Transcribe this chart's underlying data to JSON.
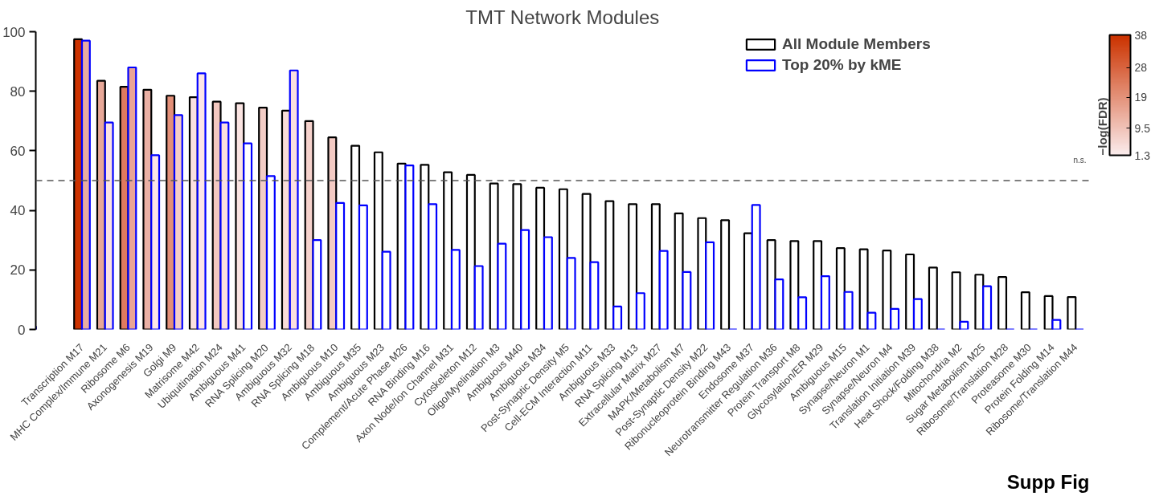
{
  "chart_data": {
    "type": "bar",
    "title": "TMT Network Modules",
    "clabel": "−log(FDR)",
    "categories": [
      "Transcription M17",
      "MHC Complex/Immune M21",
      "Ribosome M6",
      "Axonogenesis M19",
      "Golgi M9",
      "Matrisome M42",
      "Ubiquitination M24",
      "Ambiguous M41",
      "RNA Splicing M20",
      "Ambiguous M32",
      "RNA Splicing M18",
      "Ambiguous M10",
      "Ambiguous M35",
      "Ambiguous M23",
      "Complement/Acute Phase M26",
      "RNA Binding M16",
      "Axon Node/Ion Channel M31",
      "Cytoskeleton M12",
      "Oligo/Myelination M3",
      "Ambiguous M40",
      "Ambiguous M34",
      "Post-Synaptic Density M5",
      "Cell-ECM Interaction M11",
      "Ambiguous M33",
      "RNA Splicing M13",
      "Extracellular Matrix M27",
      "MAPK/Metabolism M7",
      "Post-Synaptic Density M22",
      "Ribonucleoprotein Binding M43",
      "Endosome M37",
      "Neurotransmitter Regulation M36",
      "Protein Transport M8",
      "Glycosylation/ER M29",
      "Ambiguous M15",
      "Synapse/Neuron M1",
      "Synapse/Neuron M4",
      "Translation Initiation M39",
      "Heat Shock/Folding M38",
      "Mitochondria M2",
      "Sugar Metabolism M25",
      "Ribosome/Translation M28",
      "Proteasome M30",
      "Protein Folding M14",
      "Ribosome/Translation M44"
    ],
    "series": [
      {
        "name": "All Module Members",
        "color": "#000000",
        "values": [
          97.5,
          83.5,
          81.5,
          80.5,
          78.5,
          78,
          76.5,
          76,
          74.5,
          73.5,
          70,
          64.5,
          61.7,
          59.5,
          55.7,
          55.3,
          52.8,
          51.9,
          49,
          48.8,
          47.6,
          47.1,
          45.5,
          43.1,
          42.1,
          42.1,
          39,
          37.4,
          36.7,
          32.3,
          30,
          29.7,
          29.7,
          27.3,
          26.9,
          26.5,
          25.2,
          20.8,
          19.2,
          18.4,
          17.6,
          12.5,
          11.2,
          10.9
        ],
        "colors": [
          "#cc3300",
          "#e8a898",
          "#e07a5f",
          "#eab0a4",
          "#e38f78",
          "#fbe0e0",
          "#f3c8c0",
          "#fbe4e2",
          "#f3cdc6",
          "#f8dcd8",
          "#f6d2cc",
          "#f4cbc4",
          "#ffffff",
          "#ffffff",
          "#ffffff",
          "#ffffff",
          "#ffffff",
          "#ffffff",
          "#ffffff",
          "#ffffff",
          "#ffffff",
          "#ffffff",
          "#ffffff",
          "#ffffff",
          "#ffffff",
          "#ffffff",
          "#ffffff",
          "#ffffff",
          "#ffffff",
          "#ffffff",
          "#ffffff",
          "#ffffff",
          "#ffffff",
          "#ffffff",
          "#ffffff",
          "#ffffff",
          "#ffffff",
          "#ffffff",
          "#ffffff",
          "#ffffff",
          "#ffffff",
          "#ffffff",
          "#ffffff",
          "#ffffff"
        ]
      },
      {
        "name": "Top 20% by kME",
        "color": "#0000ff",
        "values": [
          97,
          69.5,
          88,
          58.5,
          72,
          86,
          69.5,
          62.5,
          51.5,
          87,
          30,
          42.5,
          41.7,
          26.1,
          55.1,
          42.1,
          26.7,
          21.3,
          28.8,
          33.4,
          31,
          24,
          22.6,
          7.7,
          12.2,
          26.4,
          19.3,
          29.3,
          0,
          41.8,
          16.8,
          10.8,
          17.9,
          12.6,
          5.6,
          6.9,
          10.2,
          0,
          2.6,
          14.5,
          0,
          0,
          3.2,
          0
        ],
        "colors": [
          "#eaaca0",
          "#fbe3e3",
          "#e9a495",
          "#fde6e6",
          "#f5cdc6",
          "#fde6e6",
          "#fbe0de",
          "#ffffff",
          "#ffffff",
          "#fbdfdf",
          "#ffffff",
          "#ffffff",
          "#ffffff",
          "#ffffff",
          "#ffffff",
          "#ffffff",
          "#ffffff",
          "#ffffff",
          "#ffffff",
          "#ffffff",
          "#ffffff",
          "#ffffff",
          "#ffffff",
          "#ffffff",
          "#ffffff",
          "#ffffff",
          "#ffffff",
          "#ffffff",
          "#0000ff",
          "#ffffff",
          "#ffffff",
          "#ffffff",
          "#ffffff",
          "#ffffff",
          "#ffffff",
          "#ffffff",
          "#ffffff",
          "#0000ff",
          "#ffffff",
          "#ffffff",
          "#0000ff",
          "#0000ff",
          "#ffffff",
          "#0000ff"
        ]
      }
    ],
    "ylim": [
      0,
      100
    ],
    "yticks": [
      0,
      20,
      40,
      60,
      80,
      100
    ],
    "ref_lines": [
      {
        "axis": "y",
        "value": 50,
        "label": null,
        "line_style": "dashed",
        "color": "#555555"
      }
    ],
    "clim": [
      1.3,
      38
    ],
    "cticks": [
      1.3,
      9.5,
      19,
      28,
      38
    ],
    "annotations": [
      "n.s.",
      "Supp Fig"
    ],
    "legend": "top right",
    "grid": false
  }
}
